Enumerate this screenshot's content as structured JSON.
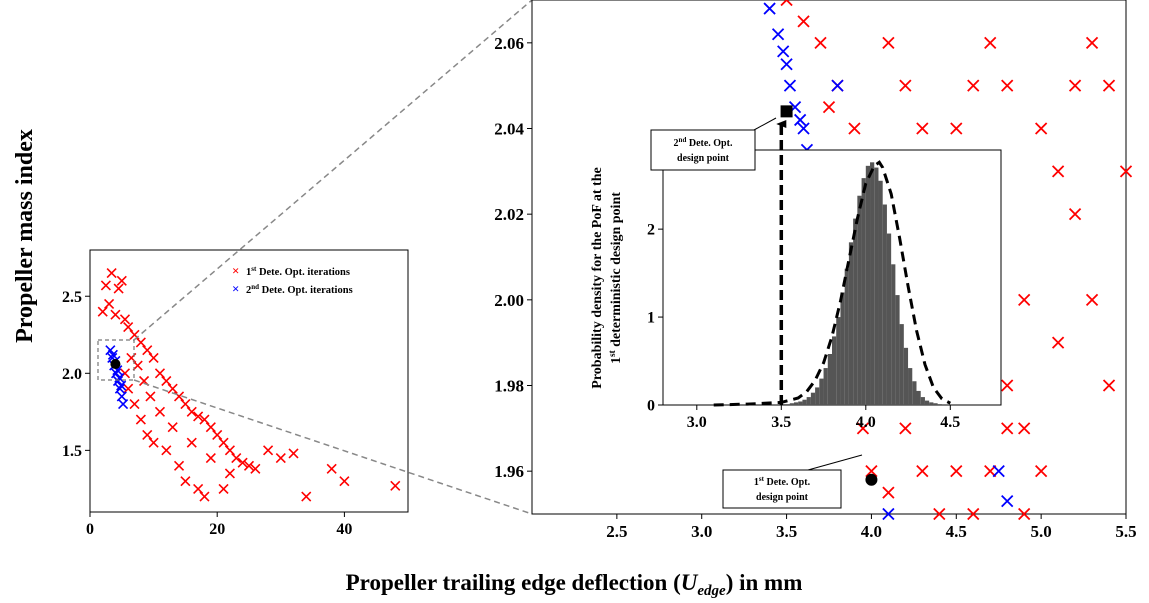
{
  "figure": {
    "ylabel": "Propeller mass index",
    "xlabel_prefix": "Propeller trailing edge deflection (",
    "xlabel_var": "U",
    "xlabel_sub": "edge",
    "xlabel_suffix": ") in mm"
  },
  "chart_data": [
    {
      "id": "overview",
      "type": "scatter",
      "xlim": [
        0,
        50
      ],
      "ylim": [
        1.1,
        2.8
      ],
      "xticks": [
        "0",
        "20",
        "40"
      ],
      "xtick_values": [
        0,
        20,
        40
      ],
      "yticks": [
        "1.5",
        "2.0",
        "2.5"
      ],
      "ytick_values": [
        1.5,
        2.0,
        2.5
      ],
      "grid": false,
      "legend_position": "top-right",
      "legend": [
        {
          "marker": "×",
          "sup_prefix": "1",
          "sup": "st",
          "text": " Dete. Opt. iterations",
          "color": "#ff0000"
        },
        {
          "marker": "×",
          "sup_prefix": "2",
          "sup": "nd",
          "text": " Dete. Opt. iterations",
          "color": "#0000ff"
        }
      ],
      "series": [
        {
          "color": "#ff0000",
          "points": [
            [
              3.4,
              2.65
            ],
            [
              5,
              2.6
            ],
            [
              4.5,
              2.55
            ],
            [
              2.5,
              2.57
            ],
            [
              3,
              2.45
            ],
            [
              2,
              2.4
            ],
            [
              4,
              2.38
            ],
            [
              5.5,
              2.35
            ],
            [
              6,
              2.3
            ],
            [
              7,
              2.25
            ],
            [
              8,
              2.2
            ],
            [
              9,
              2.15
            ],
            [
              10,
              2.1
            ],
            [
              11,
              2.0
            ],
            [
              12,
              1.95
            ],
            [
              13,
              1.9
            ],
            [
              14,
              1.85
            ],
            [
              15,
              1.8
            ],
            [
              16,
              1.75
            ],
            [
              17,
              1.72
            ],
            [
              18,
              1.7
            ],
            [
              19,
              1.65
            ],
            [
              20,
              1.6
            ],
            [
              21,
              1.55
            ],
            [
              22,
              1.5
            ],
            [
              23,
              1.45
            ],
            [
              24,
              1.42
            ],
            [
              25,
              1.4
            ],
            [
              26,
              1.38
            ],
            [
              28,
              1.5
            ],
            [
              30,
              1.45
            ],
            [
              32,
              1.48
            ],
            [
              34,
              1.2
            ],
            [
              38,
              1.38
            ],
            [
              40,
              1.3
            ],
            [
              48,
              1.27
            ],
            [
              18,
              1.2
            ],
            [
              17,
              1.25
            ],
            [
              15,
              1.3
            ],
            [
              14,
              1.4
            ],
            [
              12,
              1.5
            ],
            [
              10,
              1.55
            ],
            [
              9,
              1.6
            ],
            [
              8,
              1.7
            ],
            [
              7,
              1.8
            ],
            [
              6,
              1.9
            ],
            [
              5.5,
              2.0
            ],
            [
              6.5,
              2.1
            ],
            [
              7.5,
              2.05
            ],
            [
              8.5,
              1.95
            ],
            [
              9.5,
              1.85
            ],
            [
              11,
              1.75
            ],
            [
              13,
              1.65
            ],
            [
              16,
              1.55
            ],
            [
              19,
              1.45
            ],
            [
              22,
              1.35
            ],
            [
              21,
              1.25
            ]
          ]
        },
        {
          "color": "#0000ff",
          "points": [
            [
              3.2,
              2.15
            ],
            [
              3.5,
              2.1
            ],
            [
              3.8,
              2.05
            ],
            [
              4.1,
              2.0
            ],
            [
              4.4,
              1.95
            ],
            [
              4.7,
              1.9
            ],
            [
              5,
              1.85
            ],
            [
              5.2,
              1.8
            ],
            [
              3.6,
              2.12
            ],
            [
              4.0,
              2.08
            ],
            [
              4.3,
              2.02
            ],
            [
              4.6,
              1.97
            ],
            [
              4.9,
              1.92
            ]
          ]
        }
      ],
      "markers": [
        {
          "x": 4.0,
          "y": 2.06,
          "color": "#000000"
        }
      ]
    },
    {
      "id": "zoom",
      "type": "scatter",
      "xlim": [
        2.0,
        5.5
      ],
      "ylim": [
        1.95,
        2.07
      ],
      "xticks": [
        "2.5",
        "3.0",
        "3.5",
        "4.0",
        "4.5",
        "5.0",
        "5.5"
      ],
      "xtick_values": [
        2.5,
        3.0,
        3.5,
        4.0,
        4.5,
        5.0,
        5.5
      ],
      "yticks": [
        "1.96",
        "1.98",
        "2.00",
        "2.02",
        "2.04",
        "2.06"
      ],
      "ytick_values": [
        1.96,
        1.98,
        2.0,
        2.02,
        2.04,
        2.06
      ],
      "grid": false,
      "series": [
        {
          "color": "#ff0000",
          "points": [
            [
              3.5,
              2.07
            ],
            [
              3.6,
              2.065
            ],
            [
              3.7,
              2.06
            ],
            [
              3.8,
              2.05
            ],
            [
              3.9,
              2.04
            ],
            [
              4.0,
              2.03
            ],
            [
              4.1,
              2.06
            ],
            [
              4.2,
              2.05
            ],
            [
              4.3,
              2.04
            ],
            [
              4.4,
              2.03
            ],
            [
              4.5,
              2.02
            ],
            [
              4.6,
              2.0
            ],
            [
              4.7,
              1.99
            ],
            [
              4.8,
              1.98
            ],
            [
              4.9,
              1.97
            ],
            [
              5.0,
              1.96
            ],
            [
              5.1,
              2.03
            ],
            [
              5.2,
              2.05
            ],
            [
              5.3,
              2.06
            ],
            [
              5.4,
              2.05
            ],
            [
              5.5,
              2.03
            ],
            [
              4.9,
              2.0
            ],
            [
              5.3,
              2.0
            ],
            [
              4.0,
              1.96
            ],
            [
              4.1,
              1.955
            ],
            [
              4.2,
              1.97
            ],
            [
              4.3,
              1.96
            ],
            [
              4.4,
              1.95
            ],
            [
              4.5,
              1.96
            ],
            [
              4.6,
              1.95
            ],
            [
              4.7,
              1.96
            ],
            [
              3.7,
              2.02
            ],
            [
              3.8,
              2.01
            ],
            [
              3.9,
              2.0
            ],
            [
              4.0,
              1.99
            ],
            [
              4.1,
              1.98
            ],
            [
              4.2,
              2.01
            ],
            [
              4.3,
              2.0
            ],
            [
              4.4,
              1.98
            ],
            [
              3.6,
              2.03
            ],
            [
              3.75,
              2.045
            ],
            [
              4.5,
              2.04
            ],
            [
              4.6,
              2.05
            ],
            [
              4.7,
              2.06
            ],
            [
              4.8,
              2.05
            ],
            [
              5.0,
              2.04
            ],
            [
              5.2,
              2.02
            ],
            [
              5.4,
              1.98
            ],
            [
              5.1,
              1.99
            ],
            [
              4.9,
              1.95
            ],
            [
              4.8,
              1.97
            ],
            [
              3.95,
              1.97
            ],
            [
              3.85,
              1.98
            ]
          ]
        },
        {
          "color": "#0000ff",
          "points": [
            [
              3.4,
              2.068
            ],
            [
              3.45,
              2.062
            ],
            [
              3.5,
              2.055
            ],
            [
              3.52,
              2.05
            ],
            [
              3.55,
              2.045
            ],
            [
              3.6,
              2.04
            ],
            [
              3.62,
              2.035
            ],
            [
              3.65,
              2.03
            ],
            [
              3.7,
              2.025
            ],
            [
              3.72,
              2.02
            ],
            [
              3.75,
              2.015
            ],
            [
              3.8,
              2.01
            ],
            [
              3.82,
              2.005
            ],
            [
              3.85,
              2.0
            ],
            [
              3.9,
              1.995
            ],
            [
              3.48,
              2.058
            ],
            [
              3.58,
              2.042
            ],
            [
              3.68,
              2.028
            ],
            [
              3.78,
              2.012
            ],
            [
              4.1,
              2.03
            ],
            [
              4.0,
              2.028
            ],
            [
              3.8,
              2.05
            ],
            [
              4.8,
              1.953
            ],
            [
              4.75,
              1.96
            ],
            [
              4.1,
              1.95
            ]
          ]
        }
      ],
      "markers": [
        {
          "x": 3.5,
          "y": 2.044,
          "color": "#000000",
          "shape": "square"
        },
        {
          "x": 4.0,
          "y": 1.958,
          "color": "#000000",
          "shape": "circle"
        }
      ],
      "callouts": [
        {
          "line1_prefix": "2",
          "line1_sup": "nd",
          "line1_suffix": " Dete. Opt.",
          "line2": "design point"
        },
        {
          "line1_prefix": "1",
          "line1_sup": "st",
          "line1_suffix": " Dete. Opt.",
          "line2": "design point"
        }
      ]
    },
    {
      "id": "inset",
      "type": "bar",
      "xlim": [
        2.8,
        4.8
      ],
      "ylim": [
        0,
        2.9
      ],
      "xticks": [
        "3.0",
        "3.5",
        "4.0",
        "4.5"
      ],
      "xtick_values": [
        3.0,
        3.5,
        4.0,
        4.5
      ],
      "yticks": [
        "0",
        "1",
        "2"
      ],
      "ytick_values": [
        0,
        1,
        2
      ],
      "ylabel_line1": "Probability density for the PoF at the",
      "ylabel_line2_prefix": "1",
      "ylabel_line2_sup": "st",
      "ylabel_line2_suffix": " deterministic design point",
      "bin_width": 0.025,
      "bins_x": [
        3.5,
        3.525,
        3.55,
        3.575,
        3.6,
        3.625,
        3.65,
        3.675,
        3.7,
        3.725,
        3.75,
        3.775,
        3.8,
        3.825,
        3.85,
        3.875,
        3.9,
        3.925,
        3.95,
        3.975,
        4.0,
        4.025,
        4.05,
        4.075,
        4.1,
        4.125,
        4.15,
        4.175,
        4.2,
        4.225,
        4.25,
        4.275,
        4.3,
        4.325,
        4.35,
        4.375,
        4.4,
        4.425
      ],
      "bins_y": [
        0.01,
        0.01,
        0.02,
        0.03,
        0.04,
        0.06,
        0.09,
        0.14,
        0.2,
        0.3,
        0.42,
        0.58,
        0.78,
        1.0,
        1.28,
        1.55,
        1.85,
        2.12,
        2.38,
        2.58,
        2.72,
        2.76,
        2.7,
        2.55,
        2.28,
        1.95,
        1.6,
        1.25,
        0.92,
        0.65,
        0.42,
        0.27,
        0.16,
        0.09,
        0.05,
        0.03,
        0.02,
        0.01
      ],
      "fit_curve_x": [
        3.1,
        3.3,
        3.5,
        3.6,
        3.65,
        3.7,
        3.75,
        3.8,
        3.85,
        3.9,
        3.95,
        4.0,
        4.05,
        4.08,
        4.1,
        4.15,
        4.2,
        4.25,
        4.3,
        4.35,
        4.4,
        4.45,
        4.5
      ],
      "fit_curve_y": [
        0.0,
        0.01,
        0.03,
        0.08,
        0.15,
        0.28,
        0.48,
        0.78,
        1.18,
        1.65,
        2.12,
        2.52,
        2.72,
        2.76,
        2.7,
        2.4,
        1.9,
        1.35,
        0.85,
        0.46,
        0.2,
        0.07,
        0.02
      ],
      "arrow_x": 3.5
    }
  ]
}
